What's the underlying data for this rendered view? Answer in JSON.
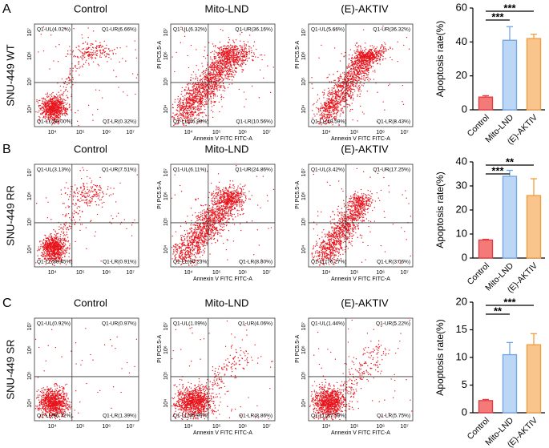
{
  "figure": {
    "x_axis_label": "Annexin V FITC FITC-A",
    "y_axis_label": "PI PC5.5-A",
    "flow_ticks": [
      "10⁴",
      "10⁵",
      "10⁶",
      "10⁷"
    ],
    "rows": [
      {
        "letter": "A",
        "cell_line": "SNU-449 WT",
        "panels": [
          {
            "title": "Control",
            "UL": "Q1-UL(4.02%)",
            "UR": "Q1-UR(6.66%)",
            "LL": "Q1-LL(89.00%)",
            "LR": "Q1-LR(0.32%)"
          },
          {
            "title": "Mito-LND",
            "UL": "Q1-UL(6.32%)",
            "UR": "Q1-UR(36.16%)",
            "LL": "Q1-LL(46.98%)",
            "LR": "Q1-LR(10.56%)"
          },
          {
            "title": "(E)-AKTIV",
            "UL": "Q1-UL(5.66%)",
            "UR": "Q1-UR(36.32%)",
            "LL": "Q1-LL(49.59%)",
            "LR": "Q1-LR(8.43%)"
          }
        ]
      },
      {
        "letter": "B",
        "cell_line": "SNU-449 RR",
        "panels": [
          {
            "title": "Control",
            "UL": "Q1-UL(3.13%)",
            "UR": "Q1-UR(7.51%)",
            "LL": "Q1-LL(88.45%)",
            "LR": "Q1-LR(0.91%)"
          },
          {
            "title": "Mito-LND",
            "UL": "Q1-UL(6.11%)",
            "UR": "Q1-UR(24.86%)",
            "LL": "Q1-LL(60.23%)",
            "LR": "Q1-LR(8.80%)"
          },
          {
            "title": "(E)-AKTIV",
            "UL": "Q1-UL(3.42%)",
            "UR": "Q1-UR(17.25%)",
            "LL": "Q1-LL(76.27%)",
            "LR": "Q1-LR(3.06%)"
          }
        ]
      },
      {
        "letter": "C",
        "cell_line": "SNU-449 SR",
        "panels": [
          {
            "title": "Control",
            "UL": "Q1-UL(0.92%)",
            "UR": "Q1-UR(0.97%)",
            "LL": "Q1-LL(96.72%)",
            "LR": "Q1-LR(1.39%)"
          },
          {
            "title": "Mito-LND",
            "UL": "Q1-UL(1.09%)",
            "UR": "Q1-UR(4.06%)",
            "LL": "Q1-LL(85.99%)",
            "LR": "Q1-LR(8.86%)"
          },
          {
            "title": "(E)-AKTIV",
            "UL": "Q1-UL(1.44%)",
            "UR": "Q1-UR(5.22%)",
            "LL": "Q1-LL(87.59%)",
            "LR": "Q1-LR(5.75%)"
          }
        ]
      }
    ]
  },
  "chart_data": [
    {
      "type": "bar",
      "ylabel": "Apoptosis rate(%)",
      "categories": [
        "Control",
        "Mito-LND",
        "(E)-AKTIV"
      ],
      "values": [
        7.5,
        41,
        42
      ],
      "errors": [
        0.8,
        8,
        2.5
      ],
      "colors": [
        "#f47a7a",
        "#bcd6f6",
        "#f9c58c"
      ],
      "edge_colors": [
        "#e8383c",
        "#6fa4e6",
        "#f29b3c"
      ],
      "ylim": [
        0,
        60
      ],
      "yticks": [
        0,
        20,
        40,
        60
      ],
      "annotations": [
        "***",
        "***"
      ]
    },
    {
      "type": "bar",
      "ylabel": "Apoptosis rate(%)",
      "categories": [
        "Control",
        "Mito-LND",
        "(E)-AKTIV"
      ],
      "values": [
        7.5,
        34,
        26
      ],
      "errors": [
        0.3,
        2.5,
        7
      ],
      "colors": [
        "#f47a7a",
        "#bcd6f6",
        "#f9c58c"
      ],
      "edge_colors": [
        "#e8383c",
        "#6fa4e6",
        "#f29b3c"
      ],
      "ylim": [
        0,
        40
      ],
      "yticks": [
        0,
        10,
        20,
        30,
        40
      ],
      "annotations": [
        "**",
        "***"
      ]
    },
    {
      "type": "bar",
      "ylabel": "Apoptosis rate(%)",
      "categories": [
        "Control",
        "Mito-LND",
        "(E)-AKTIV"
      ],
      "values": [
        2.2,
        10.5,
        12.3
      ],
      "errors": [
        0.2,
        2.2,
        2
      ],
      "colors": [
        "#f47a7a",
        "#bcd6f6",
        "#f9c58c"
      ],
      "edge_colors": [
        "#e8383c",
        "#6fa4e6",
        "#f29b3c"
      ],
      "ylim": [
        0,
        20
      ],
      "yticks": [
        0,
        5,
        10,
        15,
        20
      ],
      "annotations": [
        "***",
        "**"
      ]
    }
  ]
}
